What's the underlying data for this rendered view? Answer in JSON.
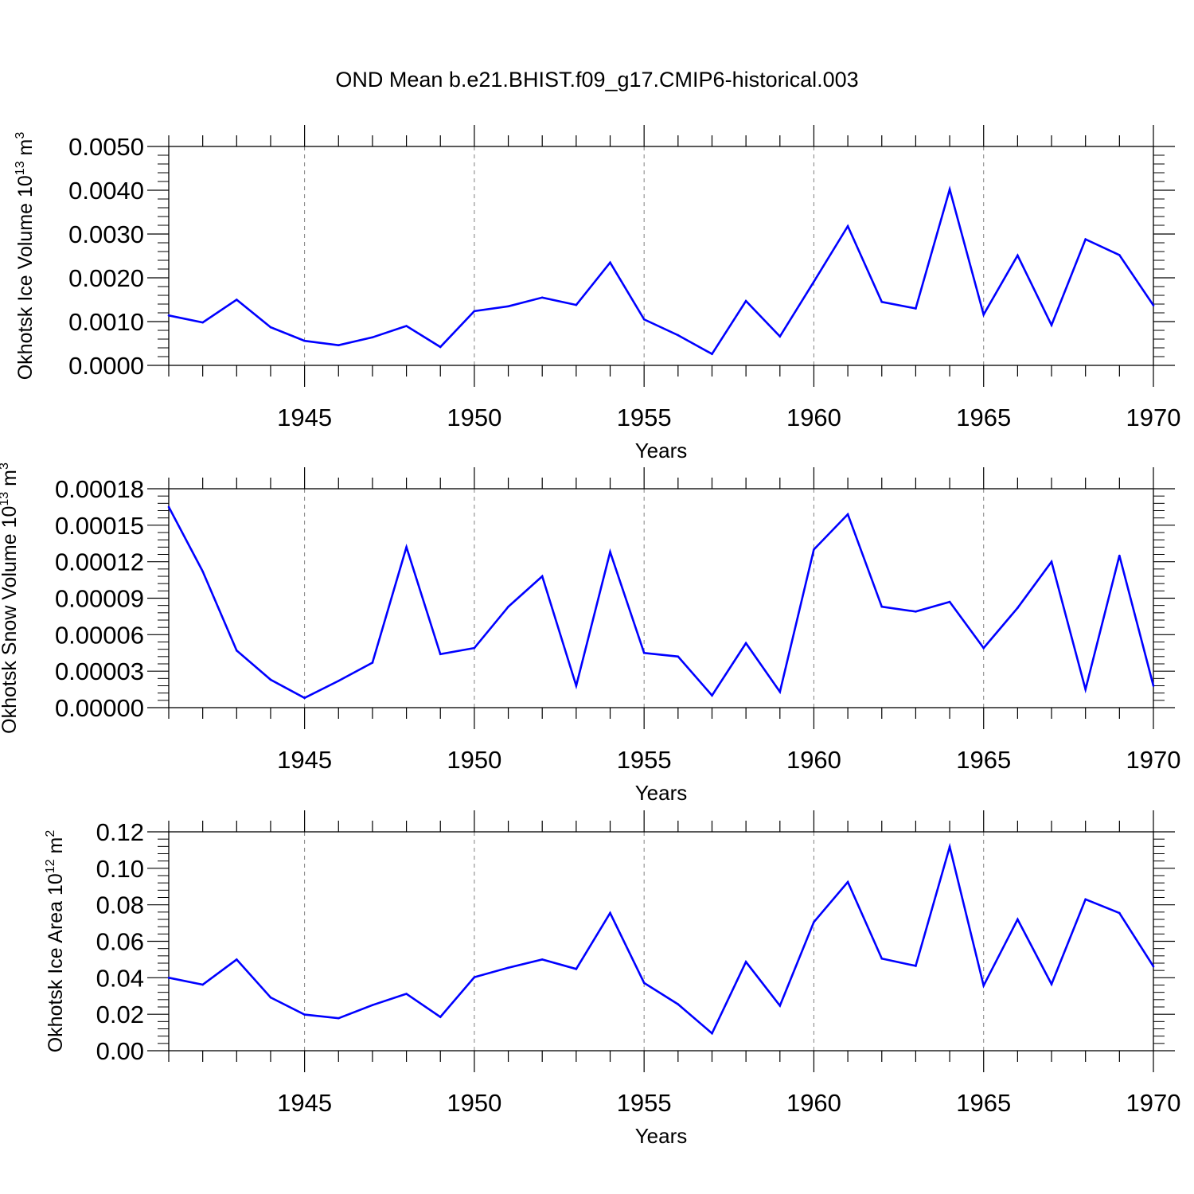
{
  "title": "OND Mean b.e21.BHIST.f09_g17.CMIP6-historical.003",
  "colors": {
    "line": "#0000ff",
    "axis": "#000000",
    "grid": "#808080"
  },
  "chart_data": [
    {
      "type": "line",
      "ylabel_main": "Okhotsk Ice Volume 10",
      "ylabel_sup1": "13",
      "ylabel_unit": " m",
      "ylabel_sup2": "3",
      "xlabel": "Years",
      "xlim": [
        1941,
        1970
      ],
      "ylim": [
        0,
        0.005
      ],
      "ytick_values": [
        0,
        0.001,
        0.002,
        0.003,
        0.004,
        0.005
      ],
      "ytick_labels": [
        "0.0000",
        "0.0010",
        "0.0020",
        "0.0030",
        "0.0040",
        "0.0050"
      ],
      "xtick_values": [
        1945,
        1950,
        1955,
        1960,
        1965,
        1970
      ],
      "xtick_labels": [
        "1945",
        "1950",
        "1955",
        "1960",
        "1965",
        "1970"
      ],
      "x": [
        1941,
        1942,
        1943,
        1944,
        1945,
        1946,
        1947,
        1948,
        1949,
        1950,
        1951,
        1952,
        1953,
        1954,
        1955,
        1956,
        1957,
        1958,
        1959,
        1960,
        1961,
        1962,
        1963,
        1964,
        1965,
        1966,
        1967,
        1968,
        1969,
        1970
      ],
      "values": [
        0.00114,
        0.00098,
        0.0015,
        0.00087,
        0.00056,
        0.00046,
        0.00064,
        0.0009,
        0.00042,
        0.00124,
        0.00135,
        0.00155,
        0.00138,
        0.00235,
        0.00105,
        0.00069,
        0.00026,
        0.00147,
        0.00066,
        0.00191,
        0.00318,
        0.00145,
        0.0013,
        0.00402,
        0.00116,
        0.00251,
        0.00092,
        0.00288,
        0.00252,
        0.00137
      ]
    },
    {
      "type": "line",
      "ylabel_main": "Okhotsk Snow Volume 10",
      "ylabel_sup1": "13",
      "ylabel_unit": " m",
      "ylabel_sup2": "3",
      "xlabel": "Years",
      "xlim": [
        1941,
        1970
      ],
      "ylim": [
        0,
        0.00018
      ],
      "ytick_values": [
        0,
        3e-05,
        6e-05,
        9e-05,
        0.00012,
        0.00015,
        0.00018
      ],
      "ytick_labels": [
        "0.00000",
        "0.00003",
        "0.00006",
        "0.00009",
        "0.00012",
        "0.00015",
        "0.00018"
      ],
      "xtick_values": [
        1945,
        1950,
        1955,
        1960,
        1965,
        1970
      ],
      "xtick_labels": [
        "1945",
        "1950",
        "1955",
        "1960",
        "1965",
        "1970"
      ],
      "x": [
        1941,
        1942,
        1943,
        1944,
        1945,
        1946,
        1947,
        1948,
        1949,
        1950,
        1951,
        1952,
        1953,
        1954,
        1955,
        1956,
        1957,
        1958,
        1959,
        1960,
        1961,
        1962,
        1963,
        1964,
        1965,
        1966,
        1967,
        1968,
        1969,
        1970
      ],
      "values": [
        0.000165,
        0.000112,
        4.7e-05,
        2.3e-05,
        8e-06,
        2.2e-05,
        3.7e-05,
        0.000132,
        4.4e-05,
        4.9e-05,
        8.3e-05,
        0.000108,
        1.8e-05,
        0.000128,
        4.5e-05,
        4.2e-05,
        1e-05,
        5.3e-05,
        1.3e-05,
        0.00013,
        0.000159,
        8.3e-05,
        7.9e-05,
        8.7e-05,
        4.9e-05,
        8.2e-05,
        0.00012,
        1.5e-05,
        0.000125,
        1.8e-05
      ]
    },
    {
      "type": "line",
      "ylabel_main": "Okhotsk Ice Area 10",
      "ylabel_sup1": "12",
      "ylabel_unit": " m",
      "ylabel_sup2": "2",
      "xlabel": "Years",
      "xlim": [
        1941,
        1970
      ],
      "ylim": [
        0,
        0.12
      ],
      "ytick_values": [
        0,
        0.02,
        0.04,
        0.06,
        0.08,
        0.1,
        0.12
      ],
      "ytick_labels": [
        "0.00",
        "0.02",
        "0.04",
        "0.06",
        "0.08",
        "0.10",
        "0.12"
      ],
      "xtick_values": [
        1945,
        1950,
        1955,
        1960,
        1965,
        1970
      ],
      "xtick_labels": [
        "1945",
        "1950",
        "1955",
        "1960",
        "1965",
        "1970"
      ],
      "x": [
        1941,
        1942,
        1943,
        1944,
        1945,
        1946,
        1947,
        1948,
        1949,
        1950,
        1951,
        1952,
        1953,
        1954,
        1955,
        1956,
        1957,
        1958,
        1959,
        1960,
        1961,
        1962,
        1963,
        1964,
        1965,
        1966,
        1967,
        1968,
        1969,
        1970
      ],
      "values": [
        0.04,
        0.0362,
        0.05,
        0.0292,
        0.0198,
        0.0178,
        0.025,
        0.0312,
        0.0185,
        0.0403,
        0.0455,
        0.05,
        0.0448,
        0.0755,
        0.0372,
        0.0255,
        0.0095,
        0.0487,
        0.0247,
        0.0705,
        0.0925,
        0.0505,
        0.0465,
        0.1118,
        0.0357,
        0.072,
        0.0365,
        0.083,
        0.0755,
        0.0462
      ]
    }
  ]
}
